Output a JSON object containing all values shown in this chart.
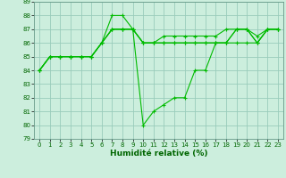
{
  "xlabel": "Humidité relative (%)",
  "xlim": [
    -0.5,
    23.5
  ],
  "ylim": [
    79,
    89
  ],
  "yticks": [
    79,
    80,
    81,
    82,
    83,
    84,
    85,
    86,
    87,
    88,
    89
  ],
  "xticks": [
    0,
    1,
    2,
    3,
    4,
    5,
    6,
    7,
    8,
    9,
    10,
    11,
    12,
    13,
    14,
    15,
    16,
    17,
    18,
    19,
    20,
    21,
    22,
    23
  ],
  "bg_color": "#cceedd",
  "grid_color": "#99ccbb",
  "line_color": "#00bb00",
  "lines": [
    [
      84,
      85,
      85,
      85,
      85,
      85,
      86,
      88,
      88,
      87,
      86,
      86,
      86,
      86,
      86,
      86,
      86,
      86,
      86,
      87,
      87,
      86,
      87,
      87
    ],
    [
      84,
      85,
      85,
      85,
      85,
      85,
      86,
      87,
      87,
      87,
      86,
      86,
      86,
      86,
      86,
      86,
      86,
      86,
      86,
      87,
      87,
      86,
      87,
      87
    ],
    [
      84,
      85,
      85,
      85,
      85,
      85,
      86,
      87,
      87,
      87,
      86,
      86,
      86.5,
      86.5,
      86.5,
      86.5,
      86.5,
      86.5,
      87,
      87,
      87,
      86.5,
      87,
      87
    ],
    [
      84,
      85,
      85,
      85,
      85,
      85,
      86,
      87,
      87,
      87,
      80,
      81,
      81.5,
      82,
      82,
      84,
      84,
      86,
      86,
      86,
      86,
      86,
      87,
      87
    ]
  ],
  "marker": "+",
  "markersize": 3,
  "linewidth": 0.8,
  "tick_fontsize": 5.0,
  "xlabel_fontsize": 6.5
}
